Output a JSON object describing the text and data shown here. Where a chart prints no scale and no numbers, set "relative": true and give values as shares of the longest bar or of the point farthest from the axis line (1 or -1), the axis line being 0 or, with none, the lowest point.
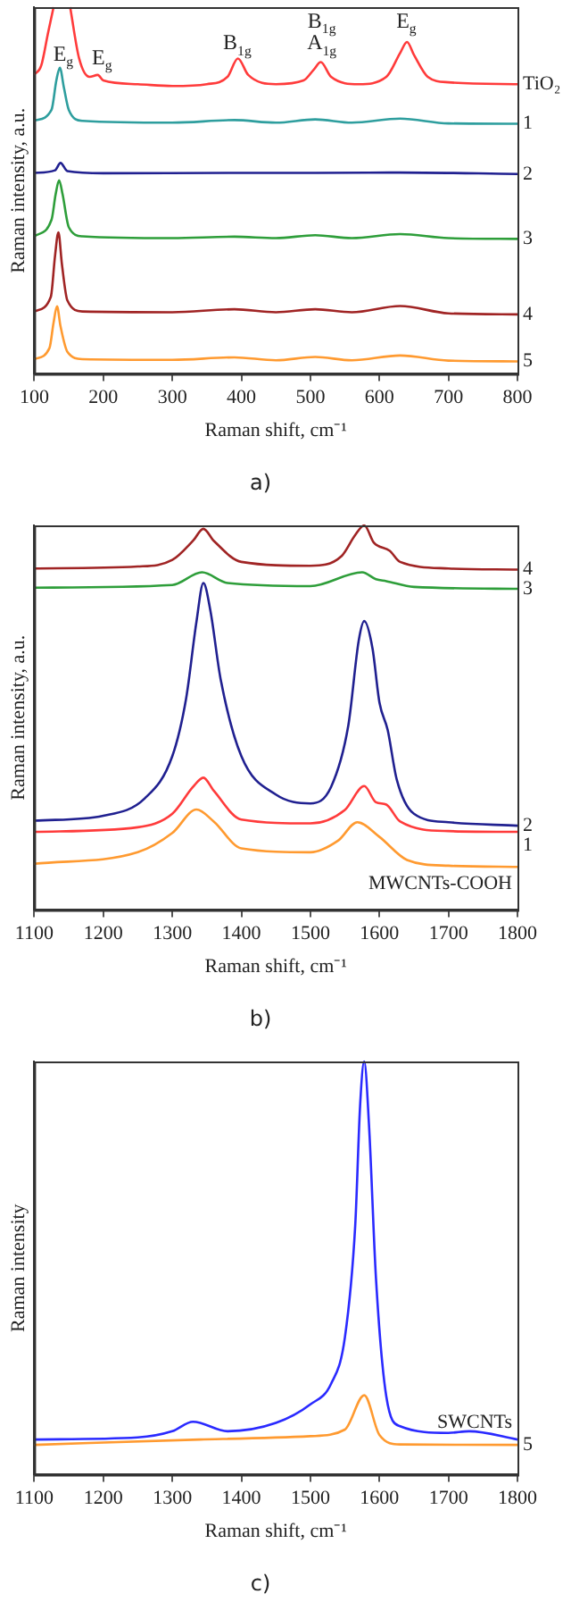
{
  "chart_data": [
    {
      "type": "line",
      "title": "a)",
      "xlabel": "Raman shift, cm⁻¹",
      "ylabel": "Raman intensity, a.u.",
      "relative": true,
      "xlim": [
        100,
        800
      ],
      "xticks": [
        100,
        200,
        300,
        400,
        500,
        600,
        700,
        800
      ],
      "grid": false,
      "legend": false,
      "marker": "none",
      "line_style": "solid",
      "annotations": [
        "E$_{g}$",
        "E$_{g}$",
        "B$_{1g}$",
        "B$_{1g}$",
        "A$_{1g}$",
        "E$_{g}$"
      ],
      "series": [
        {
          "name": "TiO₂",
          "color": "#ff3b3b",
          "x": [
            100,
            110,
            120,
            128,
            143,
            152,
            165,
            180,
            192,
            200,
            250,
            300,
            350,
            380,
            395,
            410,
            450,
            490,
            505,
            515,
            530,
            570,
            610,
            630,
            640,
            650,
            670,
            700,
            800
          ],
          "values": [
            0.816,
            0.84,
            0.93,
            1.0,
            null,
            1.0,
            0.86,
            0.81,
            0.815,
            0.8,
            0.79,
            0.785,
            0.79,
            0.81,
            0.86,
            0.815,
            0.79,
            0.8,
            0.83,
            0.85,
            0.81,
            0.79,
            0.81,
            0.875,
            0.905,
            0.87,
            0.81,
            0.795,
            0.79
          ]
        },
        {
          "name": "1",
          "color": "#2e9e9e",
          "x": [
            100,
            125,
            132,
            137,
            143,
            150,
            170,
            300,
            390,
            450,
            507,
            560,
            630,
            700,
            800
          ],
          "values": [
            0.69,
            0.72,
            0.8,
            0.835,
            0.78,
            0.72,
            0.69,
            0.685,
            0.692,
            0.685,
            0.694,
            0.685,
            0.696,
            0.683,
            0.682
          ]
        },
        {
          "name": "2",
          "color": "#202090",
          "x": [
            100,
            130,
            138,
            148,
            200,
            390,
            507,
            630,
            800
          ],
          "values": [
            0.548,
            0.555,
            0.575,
            0.553,
            0.547,
            0.548,
            0.548,
            0.549,
            0.545
          ]
        },
        {
          "name": "3",
          "color": "#2e9e3a",
          "x": [
            100,
            125,
            131,
            136,
            141,
            150,
            170,
            300,
            390,
            450,
            507,
            560,
            630,
            700,
            800
          ],
          "values": [
            0.375,
            0.42,
            0.49,
            0.528,
            0.49,
            0.4,
            0.375,
            0.37,
            0.374,
            0.37,
            0.378,
            0.37,
            0.381,
            0.37,
            0.368
          ]
        },
        {
          "name": "4",
          "color": "#a02424",
          "x": [
            100,
            124,
            130,
            135,
            140,
            148,
            170,
            300,
            390,
            450,
            507,
            560,
            630,
            700,
            800
          ],
          "values": [
            0.17,
            0.21,
            0.32,
            0.386,
            0.3,
            0.2,
            0.17,
            0.168,
            0.176,
            0.168,
            0.176,
            0.168,
            0.185,
            0.165,
            0.162
          ]
        },
        {
          "name": "5",
          "color": "#ff9a30",
          "x": [
            100,
            122,
            128,
            133,
            138,
            148,
            170,
            300,
            390,
            450,
            507,
            560,
            630,
            700,
            800
          ],
          "values": [
            0.04,
            0.07,
            0.14,
            0.184,
            0.13,
            0.06,
            0.04,
            0.038,
            0.045,
            0.037,
            0.046,
            0.037,
            0.05,
            0.036,
            0.034
          ]
        }
      ]
    },
    {
      "type": "line",
      "title": "b)",
      "xlabel": "Raman shift, cm⁻¹",
      "ylabel": "Raman intensity, a.u.",
      "relative": true,
      "xlim": [
        1100,
        1800
      ],
      "xticks": [
        1100,
        1200,
        1300,
        1400,
        1500,
        1600,
        1700,
        1800
      ],
      "grid": false,
      "legend": false,
      "marker": "none",
      "line_style": "solid",
      "series": [
        {
          "name": "4",
          "color": "#a02424",
          "x": [
            1100,
            1250,
            1300,
            1330,
            1345,
            1360,
            1400,
            1500,
            1545,
            1565,
            1578,
            1592,
            1615,
            1630,
            1700,
            1800
          ],
          "values": [
            0.888,
            0.893,
            0.91,
            0.96,
            0.991,
            0.96,
            0.905,
            0.895,
            0.92,
            0.975,
            1.0,
            0.955,
            0.934,
            0.905,
            0.888,
            0.885
          ]
        },
        {
          "name": "3",
          "color": "#2e9e3a",
          "x": [
            1100,
            1300,
            1343,
            1380,
            1500,
            1575,
            1595,
            1610,
            1650,
            1800
          ],
          "values": [
            0.838,
            0.845,
            0.878,
            0.85,
            0.842,
            0.878,
            0.86,
            0.855,
            0.84,
            0.835
          ]
        },
        {
          "name": "2",
          "color": "#202090",
          "x": [
            1100,
            1200,
            1260,
            1300,
            1320,
            1335,
            1345,
            1355,
            1370,
            1400,
            1450,
            1500,
            1530,
            1555,
            1570,
            1578,
            1590,
            1600,
            1612,
            1625,
            1650,
            1700,
            1800
          ],
          "values": [
            0.232,
            0.245,
            0.29,
            0.4,
            0.55,
            0.75,
            0.85,
            0.78,
            0.6,
            0.4,
            0.3,
            0.277,
            0.32,
            0.48,
            0.7,
            0.751,
            0.68,
            0.54,
            0.468,
            0.34,
            0.25,
            0.228,
            0.219
          ]
        },
        {
          "name": "1",
          "color": "#ff3b3b",
          "x": [
            1100,
            1250,
            1300,
            1330,
            1345,
            1360,
            1400,
            1500,
            1550,
            1578,
            1595,
            1610,
            1630,
            1700,
            1800
          ],
          "values": [
            0.203,
            0.215,
            0.25,
            0.32,
            0.344,
            0.31,
            0.235,
            0.225,
            0.26,
            0.322,
            0.28,
            0.274,
            0.23,
            0.205,
            0.203
          ]
        },
        {
          "name": "MWCNTs-COOH",
          "color": "#ff9a30",
          "x": [
            1100,
            1250,
            1300,
            1335,
            1360,
            1400,
            1500,
            1540,
            1568,
            1600,
            1640,
            1700,
            1800
          ],
          "values": [
            0.12,
            0.15,
            0.2,
            0.261,
            0.23,
            0.16,
            0.15,
            0.18,
            0.228,
            0.19,
            0.13,
            0.115,
            0.112
          ]
        }
      ]
    },
    {
      "type": "line",
      "title": "c)",
      "xlabel": "Raman shift, cm⁻¹",
      "ylabel": "Raman intensity",
      "relative": true,
      "xlim": [
        1100,
        1800
      ],
      "xticks": [
        1100,
        1200,
        1300,
        1400,
        1500,
        1600,
        1700,
        1800
      ],
      "grid": false,
      "legend": false,
      "marker": "none",
      "line_style": "solid",
      "series": [
        {
          "name": "SWCNTs",
          "color": "#2a2aff",
          "x": [
            1100,
            1250,
            1300,
            1330,
            1380,
            1450,
            1500,
            1530,
            1550,
            1565,
            1572,
            1578,
            1585,
            1595,
            1610,
            1630,
            1700,
            1730,
            1800
          ],
          "values": [
            0.085,
            0.09,
            0.105,
            0.128,
            0.105,
            0.125,
            0.17,
            0.22,
            0.332,
            0.604,
            0.892,
            1.0,
            0.844,
            0.476,
            0.189,
            0.117,
            0.101,
            0.105,
            0.085
          ]
        },
        {
          "name": "5",
          "color": "#ff9a30",
          "x": [
            1100,
            1340,
            1500,
            1550,
            1578,
            1600,
            1630,
            1800
          ],
          "values": [
            0.072,
            0.085,
            0.093,
            0.109,
            0.192,
            0.096,
            0.073,
            0.072
          ]
        }
      ]
    }
  ]
}
